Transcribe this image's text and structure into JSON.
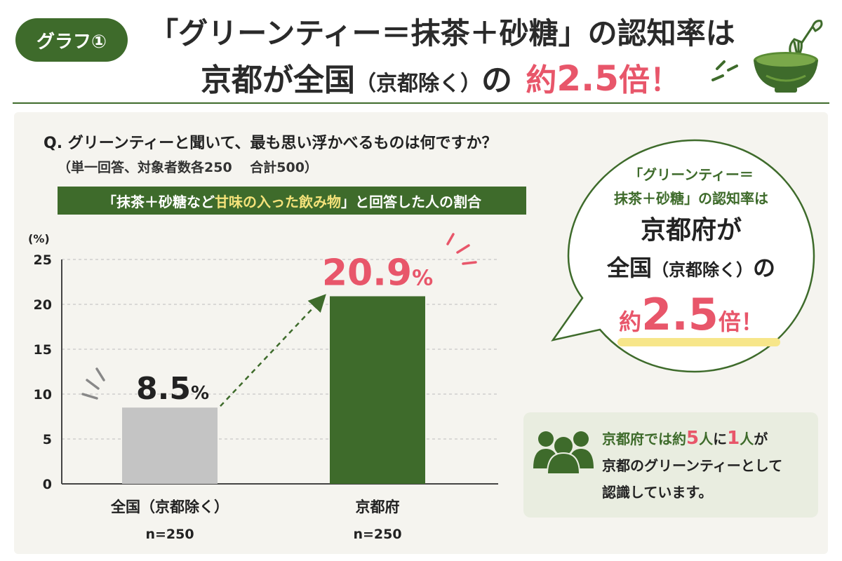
{
  "header": {
    "tag": "グラフ①",
    "title_line1": "「グリーンティー＝抹茶＋砂糖」の認知率は",
    "title_line2_a": "京都が全国",
    "title_line2_b": "（京都除く）",
    "title_line2_c": "の",
    "title_line2_d": "約",
    "title_line2_e": "2.5",
    "title_line2_f": "倍！"
  },
  "question": {
    "text": "Q. グリーンティーと聞いて、最も思い浮かべるものは何ですか？",
    "note": "（単一回答、対象者数各250　 合計500）"
  },
  "answer_banner": {
    "pre": "「抹茶＋砂糖など",
    "highlight": "甘味の入った飲み物",
    "post": "」と回答した人の割合"
  },
  "chart_data": {
    "type": "bar",
    "categories": [
      "全国（京都除く）",
      "京都府"
    ],
    "sublabels": [
      "n=250",
      "n=250"
    ],
    "values": [
      8.5,
      20.9
    ],
    "value_labels": [
      "8.5",
      "20.9"
    ],
    "value_unit": "%",
    "ylabel": "(%)",
    "ylim": [
      0,
      25
    ],
    "yticks": [
      0,
      5,
      10,
      15,
      20,
      25
    ],
    "grid": true,
    "colors": [
      "#c4c4c4",
      "#3e6b2b"
    ],
    "label_colors": [
      "#222222",
      "#e8566a"
    ],
    "arrow": true
  },
  "bubble": {
    "line1": "「グリーンティー＝",
    "line2": "抹茶＋砂糖」の認知率は",
    "line3": "京都府が",
    "line4_a": "全国",
    "line4_b": "（京都除く）",
    "line4_c": "の",
    "line5_a": "約",
    "line5_b": "2.5",
    "line5_c": "倍！"
  },
  "info": {
    "l1_a": "京都府では",
    "l1_b": "約",
    "l1_c": "5",
    "l1_d": "人",
    "l1_e": "に",
    "l1_f": "1",
    "l1_g": "人",
    "l1_h": "が",
    "l2": "京都のグリーンティーとして",
    "l3": "認識しています。"
  },
  "colors": {
    "green": "#3e6b2b",
    "accent_red": "#e8566a",
    "highlight_yellow": "#f7e68a",
    "gray_bar": "#c4c4c4"
  },
  "icons": {
    "header": "matcha-bowl-whisk-icon",
    "info": "people-group-icon"
  }
}
